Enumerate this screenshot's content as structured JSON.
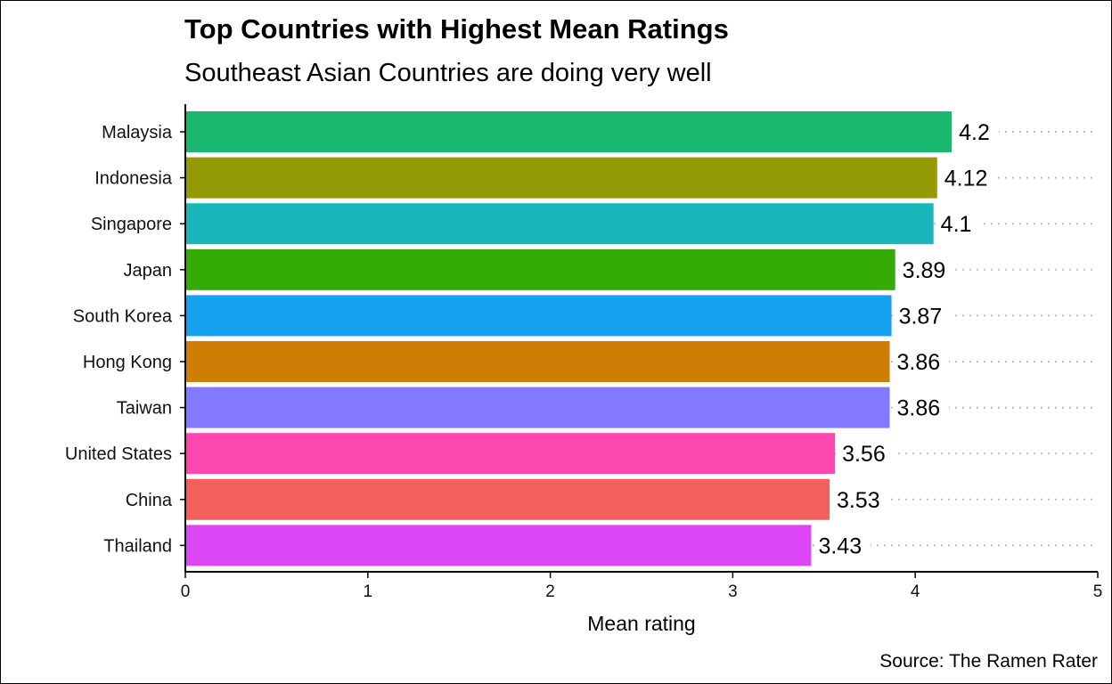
{
  "chart_data": {
    "type": "bar",
    "orientation": "horizontal",
    "title": "Top Countries with Highest Mean Ratings",
    "subtitle": "Southeast Asian Countries are doing very well",
    "xlabel": "Mean rating",
    "ylabel": "",
    "caption": "Source: The Ramen Rater",
    "xlim": [
      0,
      5
    ],
    "x_ticks": [
      "0",
      "1",
      "2",
      "3",
      "4",
      "5"
    ],
    "grid": "dotted horizontal guide lines at each category",
    "legend": "none",
    "categories": [
      "Malaysia",
      "Indonesia",
      "Singapore",
      "Japan",
      "South Korea",
      "Hong Kong",
      "Taiwan",
      "United States",
      "China",
      "Thailand"
    ],
    "values": [
      4.2,
      4.12,
      4.1,
      3.89,
      3.87,
      3.86,
      3.86,
      3.56,
      3.53,
      3.43
    ],
    "value_labels": [
      "4.2",
      "4.12",
      "4.1",
      "3.89",
      "3.87",
      "3.86",
      "3.86",
      "3.56",
      "3.53",
      "3.43"
    ],
    "colors": [
      "#1ab76f",
      "#939a03",
      "#1bb5bc",
      "#33ab04",
      "#17a1ef",
      "#cf7e05",
      "#8379ff",
      "#fd47b0",
      "#f3605c",
      "#dd46f5"
    ],
    "grid_color": "#bdbdbd"
  }
}
